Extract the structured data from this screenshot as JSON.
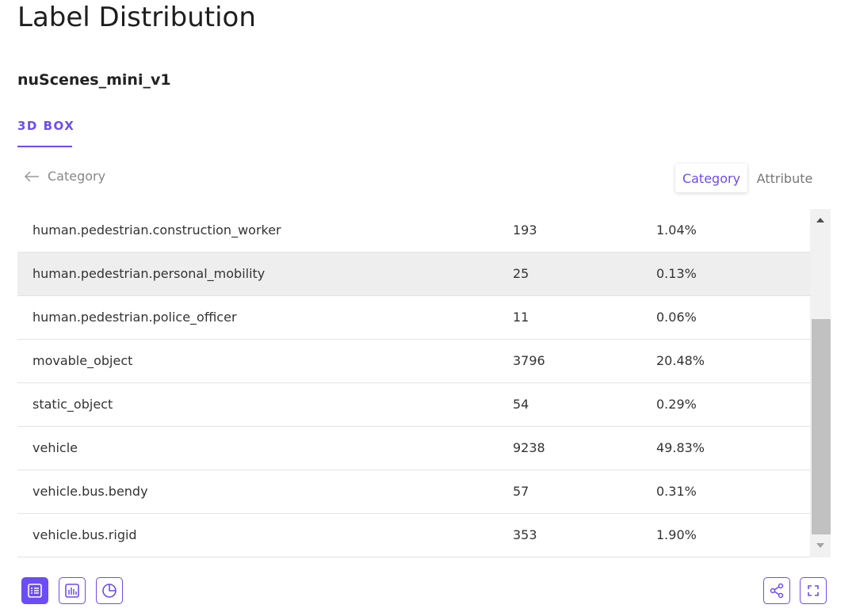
{
  "header": {
    "title": "Label Distribution",
    "dataset": "nuScenes_mini_v1",
    "tab": "3D BOX",
    "back": "Category"
  },
  "toggle": [
    "Category",
    "Attribute"
  ],
  "table": {
    "rows": [
      [
        "human.pedestrian.construction_worker",
        193,
        "1.04%"
      ],
      [
        "human.pedestrian.personal_mobility",
        25,
        "0.13%"
      ],
      [
        "human.pedestrian.police_officer",
        11,
        "0.06%"
      ],
      [
        "movable_object",
        3796,
        "20.48%"
      ],
      [
        "static_object",
        54,
        "0.29%"
      ],
      [
        "vehicle",
        9238,
        "49.83%"
      ],
      [
        "vehicle.bus.bendy",
        57,
        "0.31%"
      ],
      [
        "vehicle.bus.rigid",
        353,
        "1.90%"
      ]
    ]
  }
}
